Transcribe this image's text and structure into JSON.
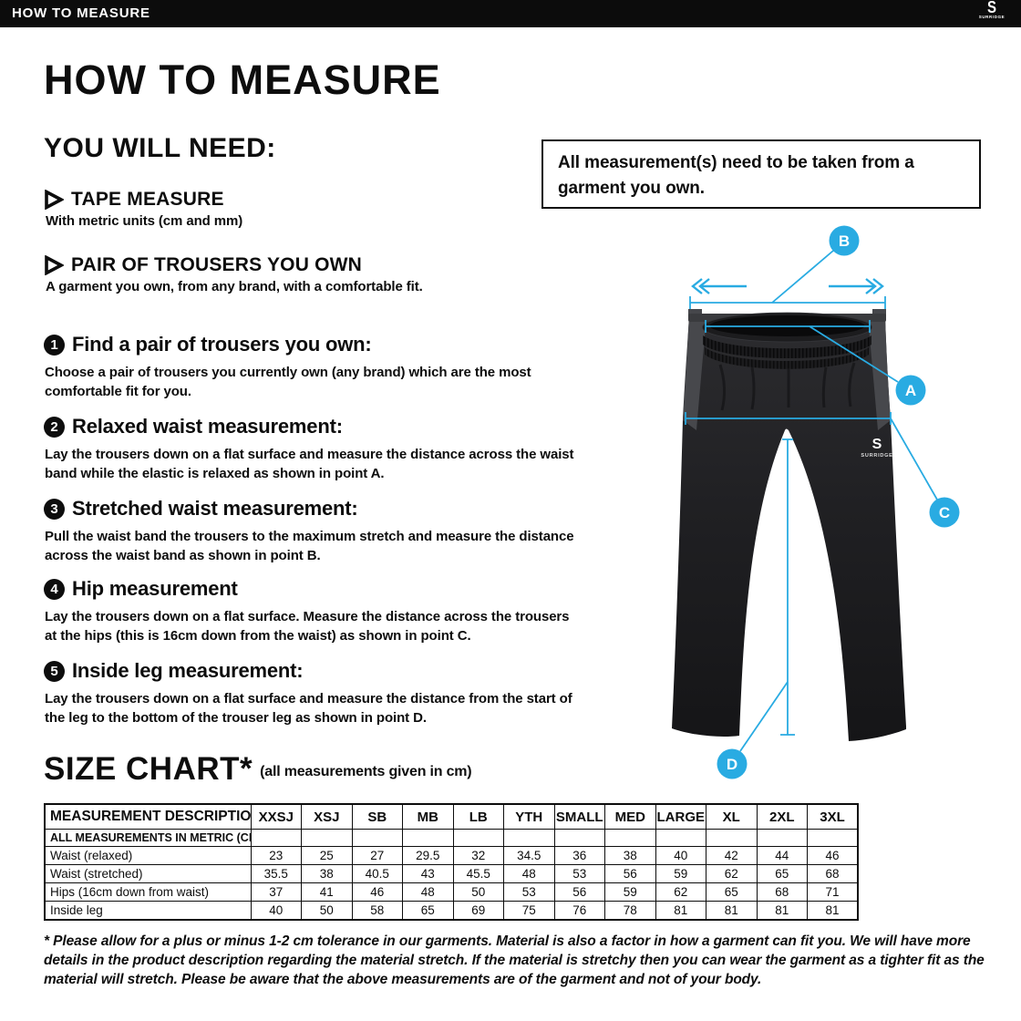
{
  "top_bar": {
    "title": "HOW TO MEASURE",
    "brand": "SURRIDGE"
  },
  "heading": "HOW TO MEASURE",
  "you_will_need": {
    "title": "YOU WILL NEED:",
    "items": [
      {
        "label": "TAPE MEASURE",
        "desc": "With metric units (cm and mm)"
      },
      {
        "label": "PAIR OF TROUSERS YOU OWN",
        "desc": "A garment you own, from any brand, with a comfortable fit."
      }
    ]
  },
  "steps": [
    {
      "num": "1",
      "title": "Find a pair of trousers you own:",
      "desc": "Choose a pair of trousers you currently own (any brand) which are the most comfortable fit for you."
    },
    {
      "num": "2",
      "title": "Relaxed waist measurement:",
      "desc": "Lay the trousers down on a flat surface and measure the distance across the waist band while the elastic is relaxed as shown in point A."
    },
    {
      "num": "3",
      "title": "Stretched waist measurement:",
      "desc": "Pull the waist band the trousers to the maximum stretch and measure the distance across the waist band as shown in point B."
    },
    {
      "num": "4",
      "title": "Hip measurement",
      "desc": "Lay the trousers down on a flat surface. Measure the distance across the trousers at the hips (this is 16cm down from the waist) as shown in point C."
    },
    {
      "num": "5",
      "title": "Inside leg measurement:",
      "desc": "Lay the trousers down on a flat surface and measure the distance from the start of the leg to the bottom of the trouser leg as shown in point D."
    }
  ],
  "note_box": "All measurement(s) need to be taken from a garment you own.",
  "diagram": {
    "accent_color": "#29ABE2",
    "garment_brand": "SURRIDGE",
    "markers": {
      "a": "A",
      "b": "B",
      "c": "C",
      "d": "D"
    }
  },
  "size_chart": {
    "title": "SIZE CHART*",
    "subtitle": "(all measurements given in cm)",
    "header": [
      "MEASUREMENT DESCRIPTION",
      "XXSJ",
      "XSJ",
      "SB",
      "MB",
      "LB",
      "YTH",
      "SMALL",
      "MED",
      "LARGE",
      "XL",
      "2XL",
      "3XL"
    ],
    "metric_row_label": "ALL MEASUREMENTS IN METRIC (CM)",
    "rows": [
      {
        "label": "Waist (relaxed)",
        "values": [
          "23",
          "25",
          "27",
          "29.5",
          "32",
          "34.5",
          "36",
          "38",
          "40",
          "42",
          "44",
          "46"
        ]
      },
      {
        "label": "Waist (stretched)",
        "values": [
          "35.5",
          "38",
          "40.5",
          "43",
          "45.5",
          "48",
          "53",
          "56",
          "59",
          "62",
          "65",
          "68"
        ]
      },
      {
        "label": "Hips (16cm down from waist)",
        "values": [
          "37",
          "41",
          "46",
          "48",
          "50",
          "53",
          "56",
          "59",
          "62",
          "65",
          "68",
          "71"
        ]
      },
      {
        "label": "Inside leg",
        "values": [
          "40",
          "50",
          "58",
          "65",
          "69",
          "75",
          "76",
          "78",
          "81",
          "81",
          "81",
          "81"
        ]
      }
    ]
  },
  "footnote": "* Please allow for a plus or minus 1-2 cm tolerance in our garments. Material is also a factor in how a garment can fit you. We will have more details in the product description regarding the material stretch.  If the material is stretchy then you can wear the garment as a tighter fit as the material will stretch.  Please be aware that the above measurements are of the garment and not of your body."
}
